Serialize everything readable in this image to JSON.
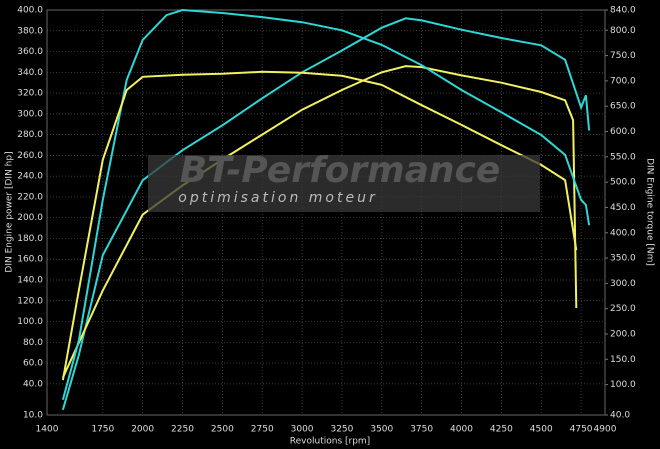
{
  "chart_data": {
    "type": "line",
    "xlabel": "Revolutions [rpm]",
    "ylabel": "DIN Engine power [DIN hp]",
    "y2label": "DIN Engine torque [Nm]",
    "watermark": "BT-Performance",
    "watermark_sub": "optimisation moteur",
    "xlim": [
      1400,
      4900
    ],
    "xticks": [
      1400,
      1750,
      2000,
      2250,
      2500,
      2750,
      3000,
      3250,
      3500,
      3750,
      4000,
      4250,
      4500,
      4750,
      4900
    ],
    "ylim": [
      10,
      400
    ],
    "yticks": [
      {
        "value": 10,
        "label": "10.0"
      },
      {
        "value": 40,
        "label": "40.0"
      },
      {
        "value": 60,
        "label": "60.0"
      },
      {
        "value": 80,
        "label": "80.0"
      },
      {
        "value": 100,
        "label": "100.0"
      },
      {
        "value": 120,
        "label": "120.0"
      },
      {
        "value": 140,
        "label": "140.0"
      },
      {
        "value": 160,
        "label": "160.0"
      },
      {
        "value": 180,
        "label": "180.0"
      },
      {
        "value": 200,
        "label": "200.0"
      },
      {
        "value": 220,
        "label": "220.0"
      },
      {
        "value": 240,
        "label": "240.0"
      },
      {
        "value": 260,
        "label": "260.0"
      },
      {
        "value": 280,
        "label": "280.0"
      },
      {
        "value": 300,
        "label": "300.0"
      },
      {
        "value": 320,
        "label": "320.0"
      },
      {
        "value": 340,
        "label": "340.0"
      },
      {
        "value": 360,
        "label": "360.0"
      },
      {
        "value": 380,
        "label": "380.0"
      },
      {
        "value": 400,
        "label": "400.0"
      }
    ],
    "y2lim": [
      40,
      840
    ],
    "y2ticks": [
      {
        "value": 40,
        "label": "40.0"
      },
      {
        "value": 100,
        "label": "100.0"
      },
      {
        "value": 150,
        "label": "150.0"
      },
      {
        "value": 200,
        "label": "200.0"
      },
      {
        "value": 250,
        "label": "250.0"
      },
      {
        "value": 300,
        "label": "300.0"
      },
      {
        "value": 350,
        "label": "350.0"
      },
      {
        "value": 400,
        "label": "400.0"
      },
      {
        "value": 450,
        "label": "450.0"
      },
      {
        "value": 500,
        "label": "500.0"
      },
      {
        "value": 550,
        "label": "550.0"
      },
      {
        "value": 600,
        "label": "600.0"
      },
      {
        "value": 650,
        "label": "650.0"
      },
      {
        "value": 700,
        "label": "700.0"
      },
      {
        "value": 750,
        "label": "750.0"
      },
      {
        "value": 800,
        "label": "800.0"
      },
      {
        "value": 840,
        "label": "840.0"
      }
    ],
    "grid": true,
    "series": [
      {
        "color": "#2ed6d6",
        "x": [
          1500,
          1600,
          1750,
          2000,
          2250,
          2500,
          2750,
          3000,
          3250,
          3500,
          3650,
          3750,
          4000,
          4250,
          4500,
          4650,
          4750,
          4780,
          4800
        ],
        "values": [
          15,
          68,
          164,
          236,
          265,
          289,
          315,
          340,
          361,
          383,
          392,
          390,
          381,
          373,
          366,
          352,
          306,
          318,
          284
        ]
      },
      {
        "color": "#f2f060",
        "x": [
          1500,
          1750,
          2000,
          2250,
          2500,
          2750,
          3000,
          3250,
          3500,
          3650,
          3750,
          4000,
          4250,
          4500,
          4650,
          4700,
          4720
        ],
        "values": [
          46,
          130,
          203,
          231,
          256,
          280,
          304,
          323,
          340,
          346,
          345,
          337,
          330,
          321,
          313,
          294,
          113
        ]
      },
      {
        "color": "#2ed6d6",
        "axis": "y2",
        "x": [
          1500,
          1600,
          1750,
          1900,
          2000,
          2150,
          2250,
          2500,
          2750,
          3000,
          3250,
          3500,
          3750,
          4000,
          4250,
          4500,
          4650,
          4750,
          4780,
          4800
        ],
        "values": [
          70,
          188,
          465,
          702,
          781,
          830,
          840,
          834,
          826,
          816,
          800,
          771,
          731,
          682,
          638,
          593,
          554,
          465,
          455,
          415
        ]
      },
      {
        "color": "#f2f060",
        "axis": "y2",
        "x": [
          1500,
          1600,
          1750,
          1900,
          2000,
          2250,
          2500,
          2750,
          3000,
          3250,
          3500,
          3750,
          4000,
          4250,
          4500,
          4650,
          4720
        ],
        "values": [
          109,
          287,
          544,
          682,
          708,
          712,
          714,
          718,
          716,
          710,
          692,
          652,
          613,
          573,
          534,
          504,
          366
        ]
      }
    ]
  }
}
